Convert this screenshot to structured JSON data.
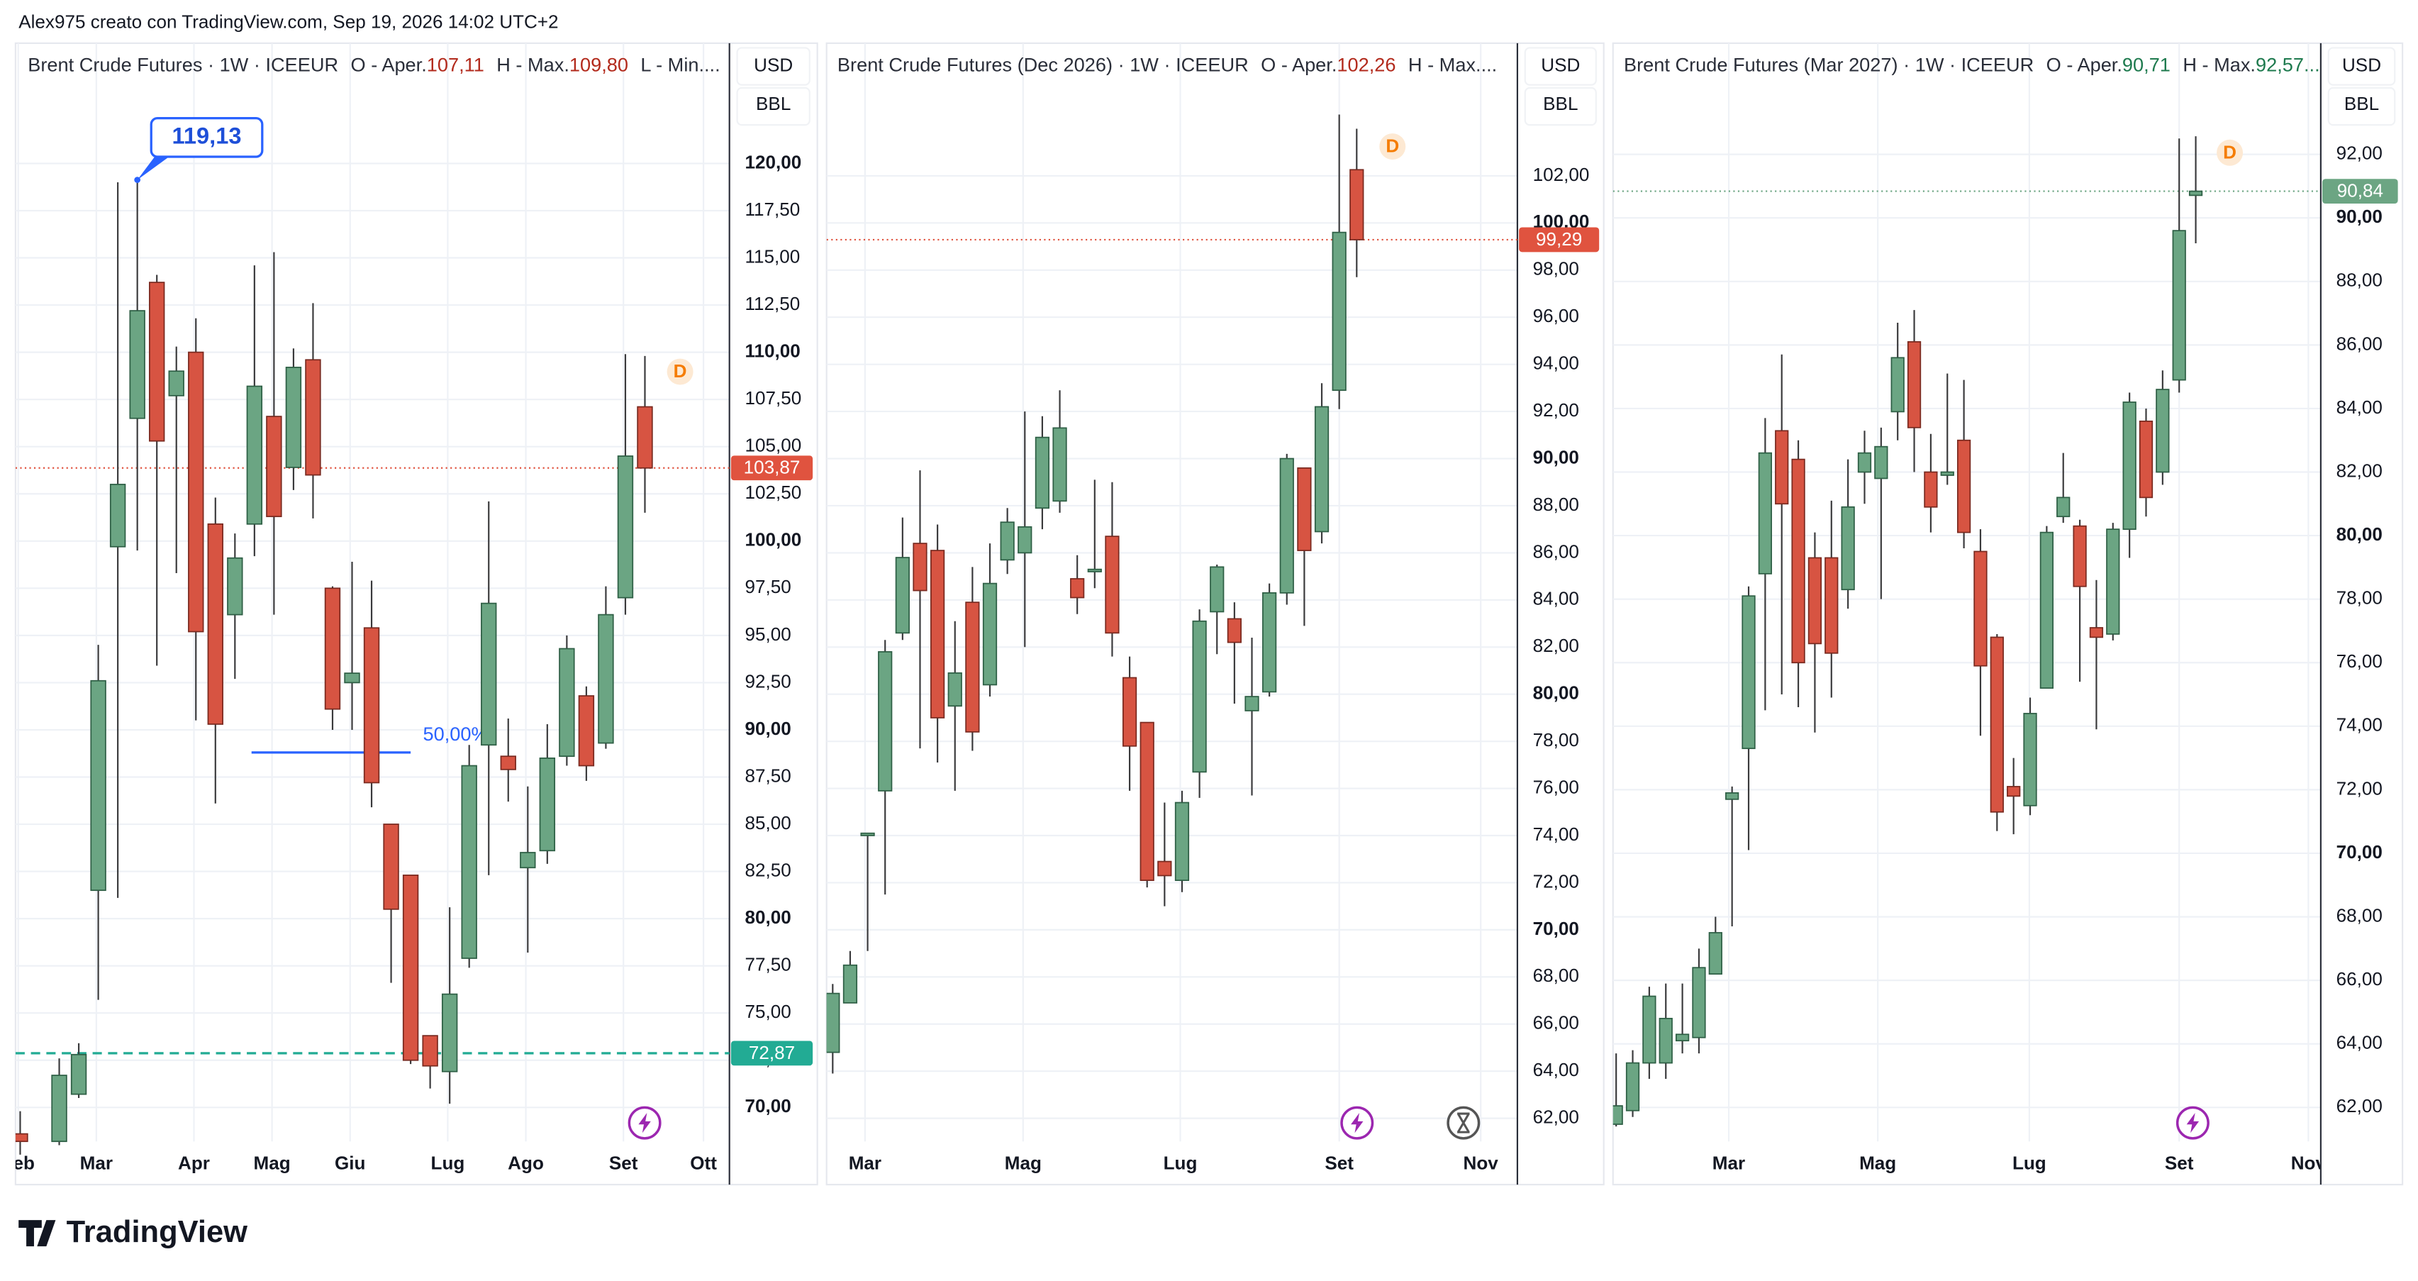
{
  "caption": "Alex975 creato con TradingView.com, Sep 19, 2026 14:02 UTC+2",
  "brand": "TradingView",
  "chart_data": [
    {
      "type": "candlestick",
      "title": "Brent Crude Futures · 1W · ICEEUR",
      "legend_items": [
        {
          "label": "O - Aper.",
          "value": "107,11"
        },
        {
          "label": "H - Max.",
          "value": "109,80"
        },
        {
          "label": "L - Min...."
        }
      ],
      "currency": "USD",
      "unit": "BBL",
      "event_label": "D",
      "up_color": "#6ba583",
      "down_color": "#d75442",
      "grid": true,
      "x": [
        0,
        2,
        3,
        4,
        5,
        6,
        7,
        8,
        9,
        10,
        11,
        12,
        13,
        14,
        15,
        16,
        17,
        18,
        19,
        20,
        21,
        22,
        23,
        24,
        25,
        26,
        27,
        28,
        29,
        30,
        31,
        32
      ],
      "open": [
        68.6,
        68.2,
        70.7,
        81.5,
        99.7,
        106.5,
        113.7,
        107.7,
        110.0,
        100.9,
        96.1,
        100.9,
        106.6,
        103.9,
        109.6,
        97.5,
        92.5,
        95.4,
        85.0,
        82.3,
        73.8,
        71.9,
        77.9,
        89.2,
        88.6,
        82.7,
        83.6,
        88.6,
        91.8,
        89.3,
        97.0,
        107.11
      ],
      "high": [
        69.8,
        72.6,
        73.4,
        94.5,
        119.0,
        119.13,
        114.1,
        110.3,
        111.8,
        102.3,
        100.4,
        114.6,
        115.3,
        110.2,
        112.6,
        97.6,
        98.9,
        97.9,
        85.0,
        82.3,
        73.8,
        80.6,
        89.2,
        102.1,
        90.6,
        87.0,
        90.3,
        95.0,
        92.3,
        97.6,
        109.9,
        109.8
      ],
      "low": [
        67.5,
        68.0,
        70.5,
        75.7,
        81.1,
        99.5,
        93.4,
        98.3,
        90.5,
        86.1,
        92.7,
        99.2,
        96.1,
        102.7,
        101.2,
        90.0,
        90.0,
        85.9,
        76.6,
        72.3,
        71.0,
        70.2,
        77.4,
        82.3,
        86.2,
        78.2,
        82.9,
        88.1,
        87.3,
        89.0,
        96.1,
        101.5
      ],
      "close": [
        68.2,
        71.7,
        72.8,
        92.6,
        103.0,
        112.2,
        105.3,
        109.0,
        95.2,
        90.3,
        99.1,
        108.2,
        101.3,
        109.2,
        103.5,
        91.1,
        93.0,
        87.2,
        80.5,
        72.5,
        72.2,
        76.0,
        88.1,
        96.7,
        87.9,
        83.5,
        88.5,
        94.3,
        88.1,
        96.1,
        104.5,
        103.87
      ],
      "xlim": [
        -0.24,
        36.33
      ],
      "xticks": [
        {
          "value": -0.1,
          "label": "Feb"
        },
        {
          "value": 3.9,
          "label": "Mar"
        },
        {
          "value": 8.9,
          "label": "Apr"
        },
        {
          "value": 12.9,
          "label": "Mag"
        },
        {
          "value": 16.9,
          "label": "Giu"
        },
        {
          "value": 21.9,
          "label": "Lug"
        },
        {
          "value": 25.9,
          "label": "Ago"
        },
        {
          "value": 30.9,
          "label": "Set"
        },
        {
          "value": 35.0,
          "label": "Ott"
        }
      ],
      "ylim": [
        68.2,
        126.37
      ],
      "yticks": [
        {
          "value": 70,
          "label": "70,00"
        },
        {
          "value": 72.5,
          "label": "72,50"
        },
        {
          "value": 75,
          "label": "75,00"
        },
        {
          "value": 77.5,
          "label": "77,50"
        },
        {
          "value": 80,
          "label": "80,00"
        },
        {
          "value": 82.5,
          "label": "82,50"
        },
        {
          "value": 85,
          "label": "85,00"
        },
        {
          "value": 87.5,
          "label": "87,50"
        },
        {
          "value": 90,
          "label": "90,00"
        },
        {
          "value": 92.5,
          "label": "92,50"
        },
        {
          "value": 95,
          "label": "95,00"
        },
        {
          "value": 97.5,
          "label": "97,50"
        },
        {
          "value": 100,
          "label": "100,00"
        },
        {
          "value": 102.5,
          "label": "102,50"
        },
        {
          "value": 105,
          "label": "105,00"
        },
        {
          "value": 107.5,
          "label": "107,50"
        },
        {
          "value": 110,
          "label": "110,00"
        },
        {
          "value": 112.5,
          "label": "112,50"
        },
        {
          "value": 115,
          "label": "115,00"
        },
        {
          "value": 117.5,
          "label": "117,50"
        },
        {
          "value": 120,
          "label": "120,00"
        }
      ],
      "last_price": {
        "value": 103.87,
        "label": "103,87",
        "color": "#e0533f"
      },
      "price_line": {
        "value": 72.87,
        "label": "72,87",
        "color": "#22ab94"
      },
      "annotation": {
        "x": 6,
        "price": 119.13,
        "label": "119,13"
      },
      "fib": {
        "price": 88.8,
        "from": 11.85,
        "to": 20.0,
        "label": "50,00%"
      }
    },
    {
      "type": "candlestick",
      "title": "Brent Crude Futures (Dec 2026) · 1W · ICEEUR",
      "legend_items": [
        {
          "label": "O - Aper.",
          "value": "102,26"
        },
        {
          "label": "H - Max...."
        }
      ],
      "currency": "USD",
      "unit": "BBL",
      "event_label": "D",
      "up_color": "#6ba583",
      "down_color": "#d75442",
      "grid": true,
      "x": [
        0,
        1,
        2,
        3,
        4,
        5,
        6,
        7,
        8,
        9,
        10,
        11,
        12,
        13,
        14,
        15,
        16,
        17,
        18,
        19,
        20,
        21,
        22,
        23,
        24,
        25,
        26,
        27,
        28,
        29,
        30
      ],
      "open": [
        64.8,
        66.9,
        74.05,
        75.9,
        82.6,
        86.4,
        86.1,
        79.5,
        83.9,
        80.4,
        85.7,
        86.0,
        87.9,
        88.2,
        84.9,
        85.2,
        86.7,
        80.7,
        78.8,
        72.9,
        72.1,
        76.7,
        83.5,
        83.2,
        79.3,
        80.1,
        84.3,
        89.6,
        86.9,
        92.9,
        102.26
      ],
      "high": [
        67.7,
        69.1,
        74.1,
        82.3,
        87.5,
        89.5,
        87.2,
        83.1,
        85.4,
        86.4,
        87.9,
        92.0,
        91.8,
        92.9,
        85.9,
        89.1,
        89.0,
        81.6,
        78.8,
        75.4,
        75.9,
        83.6,
        85.5,
        83.9,
        82.4,
        84.7,
        90.2,
        89.6,
        93.2,
        104.6,
        104.0
      ],
      "low": [
        63.9,
        66.9,
        69.1,
        71.5,
        82.3,
        77.7,
        77.1,
        75.9,
        77.6,
        79.9,
        85.1,
        82.0,
        87.0,
        87.7,
        83.4,
        84.5,
        81.6,
        75.9,
        71.8,
        71.0,
        71.6,
        75.6,
        81.7,
        79.6,
        75.7,
        79.9,
        83.8,
        82.9,
        86.4,
        92.1,
        97.7
      ],
      "close": [
        67.3,
        68.5,
        74.1,
        81.8,
        85.8,
        84.4,
        79.0,
        80.9,
        78.4,
        84.7,
        87.3,
        87.1,
        90.9,
        91.3,
        84.1,
        85.3,
        82.6,
        77.8,
        72.1,
        72.3,
        75.4,
        83.1,
        85.4,
        82.2,
        79.9,
        84.3,
        90.0,
        86.1,
        92.2,
        99.6,
        99.29
      ],
      "xlim": [
        -0.35,
        39.2
      ],
      "xticks": [
        {
          "value": 1.85,
          "label": "Mar"
        },
        {
          "value": 10.9,
          "label": "Mag"
        },
        {
          "value": 19.9,
          "label": "Lug"
        },
        {
          "value": 29.0,
          "label": "Set"
        },
        {
          "value": 37.1,
          "label": "Nov"
        }
      ],
      "ylim": [
        61.02,
        107.63
      ],
      "yticks": [
        {
          "value": 62,
          "label": "62,00"
        },
        {
          "value": 64,
          "label": "64,00"
        },
        {
          "value": 66,
          "label": "66,00"
        },
        {
          "value": 68,
          "label": "68,00"
        },
        {
          "value": 70,
          "label": "70,00"
        },
        {
          "value": 72,
          "label": "72,00"
        },
        {
          "value": 74,
          "label": "74,00"
        },
        {
          "value": 76,
          "label": "76,00"
        },
        {
          "value": 78,
          "label": "78,00"
        },
        {
          "value": 80,
          "label": "80,00"
        },
        {
          "value": 82,
          "label": "82,00"
        },
        {
          "value": 84,
          "label": "84,00"
        },
        {
          "value": 86,
          "label": "86,00"
        },
        {
          "value": 88,
          "label": "88,00"
        },
        {
          "value": 90,
          "label": "90,00"
        },
        {
          "value": 92,
          "label": "92,00"
        },
        {
          "value": 94,
          "label": "94,00"
        },
        {
          "value": 96,
          "label": "96,00"
        },
        {
          "value": 98,
          "label": "98,00"
        },
        {
          "value": 100,
          "label": "100,00"
        },
        {
          "value": 102,
          "label": "102,00"
        }
      ],
      "last_price": {
        "value": 99.29,
        "label": "99,29",
        "color": "#e0533f"
      }
    },
    {
      "type": "candlestick",
      "title": "Brent Crude Futures (Mar 2027) · 1W · ICEEUR",
      "legend_items": [
        {
          "label": "O - Aper.",
          "value": "90,71"
        },
        {
          "label": "H - Max.",
          "value": "92,57..."
        }
      ],
      "currency": "USD",
      "unit": "BBL",
      "event_label": "D",
      "up_color": "#6ba583",
      "down_color": "#d75442",
      "grid": true,
      "x": [
        0,
        1,
        2,
        3,
        4,
        5,
        6,
        7,
        8,
        9,
        10,
        11,
        12,
        13,
        14,
        15,
        16,
        17,
        18,
        19,
        20,
        21,
        22,
        23,
        24,
        25,
        26,
        27,
        28,
        29,
        30,
        31,
        32,
        33,
        34,
        35
      ],
      "open": [
        61.47,
        61.9,
        63.4,
        63.4,
        64.1,
        64.2,
        66.2,
        71.7,
        73.3,
        78.8,
        83.3,
        82.4,
        79.3,
        79.3,
        78.3,
        82.0,
        81.8,
        83.9,
        86.1,
        82.0,
        81.9,
        83.0,
        79.5,
        76.8,
        72.1,
        71.5,
        75.2,
        80.6,
        80.3,
        77.1,
        76.9,
        80.2,
        83.6,
        82.0,
        84.9,
        90.71
      ],
      "high": [
        63.7,
        63.8,
        65.8,
        65.9,
        65.9,
        67.0,
        68.0,
        72.1,
        78.4,
        83.7,
        85.7,
        83.0,
        80.1,
        81.1,
        82.4,
        83.3,
        83.4,
        86.7,
        87.1,
        83.2,
        85.1,
        84.9,
        80.2,
        76.9,
        73.0,
        74.9,
        80.3,
        82.6,
        80.5,
        78.6,
        80.4,
        84.5,
        84.0,
        85.2,
        92.5,
        92.57
      ],
      "low": [
        61.4,
        61.7,
        62.9,
        62.9,
        63.7,
        63.7,
        66.2,
        67.7,
        70.1,
        74.5,
        75.0,
        74.6,
        73.8,
        74.9,
        77.7,
        81.0,
        78.0,
        83.0,
        82.0,
        80.1,
        81.6,
        79.6,
        73.7,
        70.7,
        70.6,
        71.2,
        75.2,
        80.4,
        75.4,
        73.9,
        76.7,
        79.3,
        80.6,
        81.6,
        84.5,
        89.2
      ],
      "close": [
        62.05,
        63.4,
        65.5,
        64.8,
        64.3,
        66.4,
        67.5,
        71.9,
        78.1,
        82.6,
        81.0,
        76.0,
        76.6,
        76.3,
        80.9,
        82.6,
        82.8,
        85.6,
        83.4,
        80.9,
        82.0,
        80.1,
        75.9,
        71.3,
        71.8,
        74.4,
        80.1,
        81.2,
        78.4,
        76.8,
        80.2,
        84.2,
        81.2,
        84.6,
        89.6,
        90.84
      ],
      "xlim": [
        -0.19,
        42.55
      ],
      "xticks": [
        {
          "value": 6.8,
          "label": "Mar"
        },
        {
          "value": 15.8,
          "label": "Mag"
        },
        {
          "value": 24.95,
          "label": "Lug"
        },
        {
          "value": 34.0,
          "label": "Set"
        },
        {
          "value": 41.8,
          "label": "Nov"
        }
      ],
      "ylim": [
        60.93,
        95.5
      ],
      "yticks": [
        {
          "value": 62,
          "label": "62,00"
        },
        {
          "value": 64,
          "label": "64,00"
        },
        {
          "value": 66,
          "label": "66,00"
        },
        {
          "value": 68,
          "label": "68,00"
        },
        {
          "value": 70,
          "label": "70,00"
        },
        {
          "value": 72,
          "label": "72,00"
        },
        {
          "value": 74,
          "label": "74,00"
        },
        {
          "value": 76,
          "label": "76,00"
        },
        {
          "value": 78,
          "label": "78,00"
        },
        {
          "value": 80,
          "label": "80,00"
        },
        {
          "value": 82,
          "label": "82,00"
        },
        {
          "value": 84,
          "label": "84,00"
        },
        {
          "value": 86,
          "label": "86,00"
        },
        {
          "value": 88,
          "label": "88,00"
        },
        {
          "value": 90,
          "label": "90,00"
        },
        {
          "value": 92,
          "label": "92,00"
        }
      ],
      "last_price": {
        "value": 90.84,
        "label": "90,84",
        "color": "#6ca583"
      }
    }
  ]
}
